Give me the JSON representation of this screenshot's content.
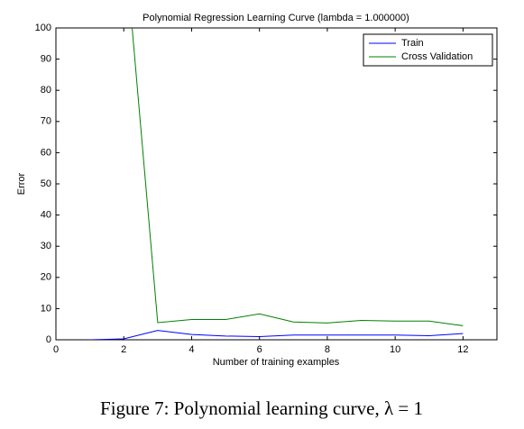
{
  "chart_data": {
    "type": "line",
    "title": "Polynomial Regression Learning Curve (lambda = 1.000000)",
    "x_label": "Number of training examples",
    "y_label": "Error",
    "x": [
      1,
      2,
      3,
      4,
      5,
      6,
      7,
      8,
      9,
      10,
      11,
      12
    ],
    "series": [
      {
        "name": "Train",
        "color": "#0000ff",
        "values": [
          0,
          0.3,
          3,
          1.7,
          1.2,
          1,
          1.5,
          1.5,
          1.5,
          1.5,
          1.3,
          2
        ]
      },
      {
        "name": "Cross Validation",
        "color": "#008000",
        "values": [
          null,
          131,
          5.5,
          6.5,
          6.5,
          8.3,
          5.7,
          5.4,
          6.2,
          6,
          6,
          4.5
        ]
      }
    ],
    "xlim": [
      0,
      13
    ],
    "xticks": [
      0,
      2,
      4,
      6,
      8,
      10,
      12
    ],
    "ylim": [
      0,
      100
    ],
    "yticks": [
      0,
      10,
      20,
      30,
      40,
      50,
      60,
      70,
      80,
      90,
      100
    ],
    "legend": "upper right"
  },
  "caption": "Figure 7: Polynomial learning curve, λ = 1"
}
